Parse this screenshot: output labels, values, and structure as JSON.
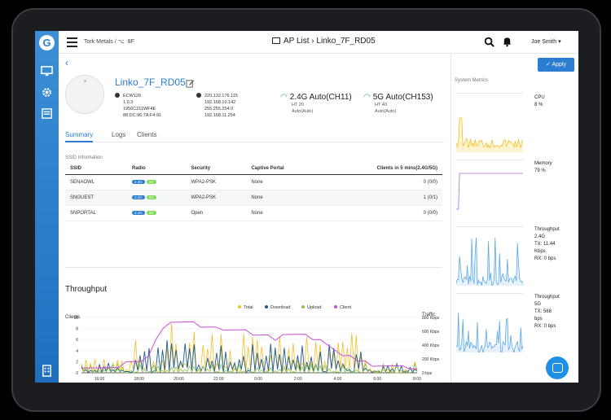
{
  "brand": {
    "logo": "G",
    "accent": "#2a7dd1"
  },
  "header": {
    "org": "Tork Metals /",
    "floor": "8F",
    "title": "AP List › Linko_7F_RD05",
    "user": "Joe Smith"
  },
  "ap": {
    "name": "Linko_7F_RD05",
    "model": "ECW120",
    "version": "1.0.3",
    "serial": "1950C211WF4E",
    "mac": "88:DC:96:7A:F4:91",
    "ip_public": "220.132.176.115",
    "ip_local": "192.168.10.142",
    "netmask": "255.255.254.0",
    "gateway": "192.168.11.254",
    "band24": {
      "label": "2.4G",
      "channel": "Auto(CH11)",
      "ht": "HT 20",
      "power": "Auto(Auto)"
    },
    "band5": {
      "label": "5G",
      "channel": "Auto(CH153)",
      "ht": "HT 40",
      "power": "Auto(Auto)"
    }
  },
  "apply_label": "✓ Apply",
  "tabs": [
    "Summary",
    "Logs",
    "Clients"
  ],
  "ssid_section": {
    "title": "SSID Information",
    "columns": [
      "SSID",
      "Radio",
      "Security",
      "Captive Portal",
      "Clients in 5 mins(2.4G/5G)"
    ],
    "rows": [
      {
        "ssid": "SENAOWL",
        "security": "WPA2-PSK",
        "portal": "None",
        "clients": "0 (0/0)"
      },
      {
        "ssid": "SNGUEST",
        "security": "WPA2-PSK",
        "portal": "None",
        "clients": "1 (0/1)"
      },
      {
        "ssid": "SNPORTAL",
        "security": "Open",
        "portal": "None",
        "clients": "0 (0/0)"
      }
    ],
    "badge24": "2.4G",
    "badge5": "5G"
  },
  "throughput": {
    "title": "Throughput",
    "left_axis": "Clients",
    "right_axis": "Traffic",
    "legend": [
      "Total",
      "Download",
      "Upload",
      "Client"
    ]
  },
  "system_metrics": {
    "title": "System Metrics",
    "cpu": {
      "name": "CPU",
      "value": "8 %"
    },
    "memory": {
      "name": "Memory",
      "value": "79 %"
    },
    "tp24": {
      "name": "Throughput",
      "band": "2.4G",
      "tx": "TX: 11.44",
      "tx_unit": "Kbps",
      "rx": "RX: 0 bps"
    },
    "tp5": {
      "name": "Throughput",
      "band": "5G",
      "tx": "TX: 568",
      "tx_unit": "bps",
      "rx": "RX: 0 bps"
    }
  },
  "chart_data": {
    "type": "line",
    "x": [
      "16:00",
      "18:00",
      "20:00",
      "22:00",
      "0:00",
      "2:00",
      "4:00",
      "6:00",
      "8:00"
    ],
    "y_left_ticks": [
      0,
      2,
      4,
      6,
      8,
      10
    ],
    "y_right_ticks": [
      "800 Kbps",
      "600 Kbps",
      "400 Kbps",
      "200 Kbps",
      "0 bps"
    ],
    "series": [
      {
        "name": "Total",
        "color": "#f2c029"
      },
      {
        "name": "Download",
        "color": "#1c5b8f"
      },
      {
        "name": "Upload",
        "color": "#8bc34a"
      },
      {
        "name": "Client",
        "color": "#c94fd6"
      }
    ],
    "client_values": [
      1,
      1,
      1,
      1,
      1,
      1,
      2,
      2,
      2,
      3,
      6,
      8,
      9,
      9,
      9,
      9,
      8,
      8,
      8,
      8,
      8,
      8,
      8,
      7,
      7,
      7,
      6,
      7,
      7,
      7,
      7,
      6,
      6,
      5,
      4,
      3,
      3,
      2,
      2,
      1,
      1,
      1,
      1,
      1,
      1,
      1
    ]
  }
}
